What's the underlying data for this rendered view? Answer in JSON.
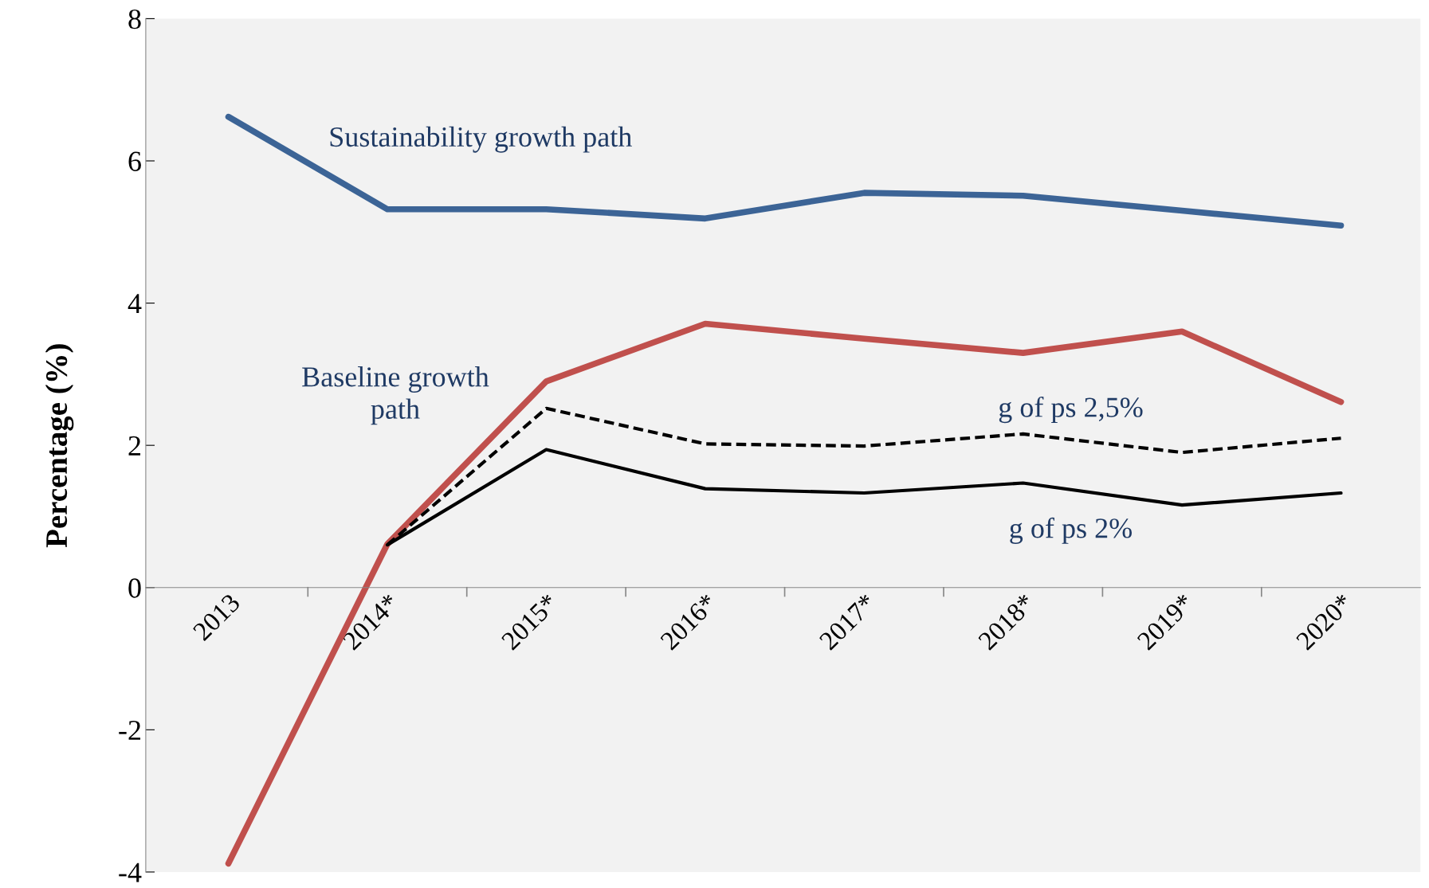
{
  "chart_data": {
    "type": "line",
    "ylabel": "Percentage (%)",
    "categories": [
      "2013",
      "2014*",
      "2015*",
      "2016*",
      "2017*",
      "2018*",
      "2019*",
      "2020*"
    ],
    "series": [
      {
        "name": "Sustainability growth path",
        "color": "#3c6496",
        "values": [
          6.62,
          5.32,
          5.32,
          5.19,
          5.55,
          5.51,
          5.3,
          5.09
        ]
      },
      {
        "name": "Baseline growth path",
        "color": "#c0504d",
        "values": [
          -3.88,
          0.61,
          2.9,
          3.71,
          3.5,
          3.3,
          3.6,
          2.61
        ]
      },
      {
        "name": "g of ps 2,5%",
        "color": "#000000",
        "line_style": "dashed",
        "values": [
          null,
          0.6,
          2.52,
          2.02,
          1.99,
          2.16,
          1.9,
          2.1
        ]
      },
      {
        "name": "g of ps 2%",
        "color": "#000000",
        "values": [
          null,
          0.6,
          1.94,
          1.39,
          1.33,
          1.47,
          1.16,
          1.33
        ]
      }
    ],
    "ylim": [
      -4,
      8
    ],
    "yticks": [
      -4,
      -2,
      0,
      2,
      4,
      6,
      8
    ],
    "grid": false,
    "legend": false,
    "marker": "none"
  }
}
